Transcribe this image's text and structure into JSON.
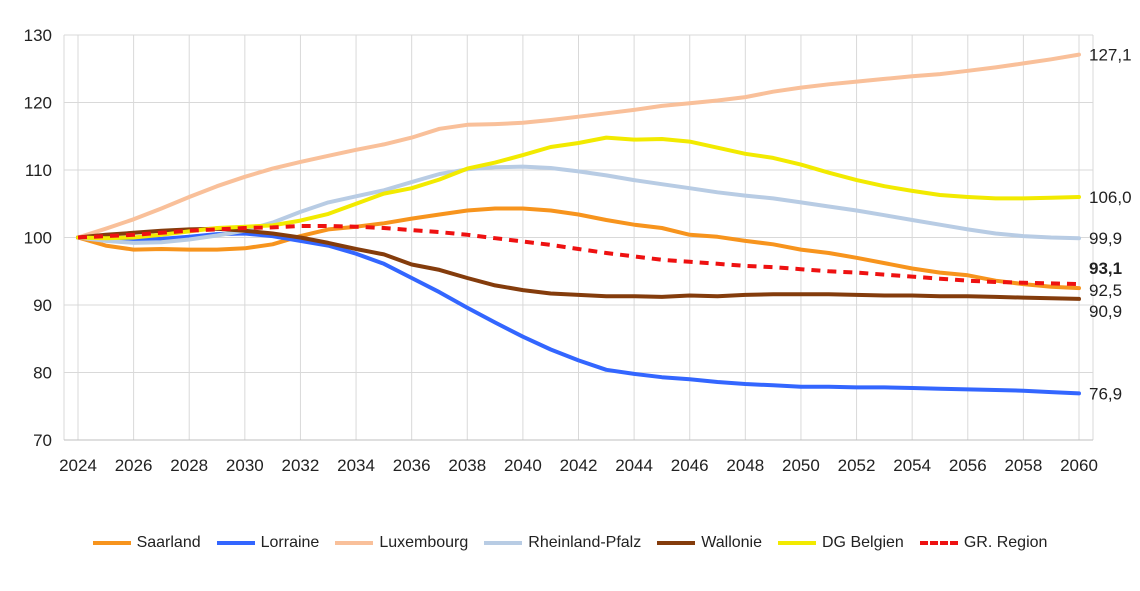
{
  "chart_data": {
    "type": "line",
    "title": "",
    "xlabel": "",
    "ylabel": "",
    "xlim": [
      2024,
      2060
    ],
    "ylim": [
      70,
      130
    ],
    "yticks": [
      70,
      80,
      90,
      100,
      110,
      120,
      130
    ],
    "xticks": [
      2024,
      2026,
      2028,
      2030,
      2032,
      2034,
      2036,
      2038,
      2040,
      2042,
      2044,
      2046,
      2048,
      2050,
      2052,
      2054,
      2056,
      2058,
      2060
    ],
    "grid": true,
    "legend_position": "bottom",
    "x": [
      2024,
      2025,
      2026,
      2027,
      2028,
      2029,
      2030,
      2031,
      2032,
      2033,
      2034,
      2035,
      2036,
      2037,
      2038,
      2039,
      2040,
      2041,
      2042,
      2043,
      2044,
      2045,
      2046,
      2047,
      2048,
      2049,
      2050,
      2051,
      2052,
      2053,
      2054,
      2055,
      2056,
      2057,
      2058,
      2059,
      2060
    ],
    "series": [
      {
        "name": "Saarland",
        "color": "#f7941d",
        "dash": false,
        "end_label": "92,5",
        "bold": false,
        "values": [
          100,
          98.8,
          98.2,
          98.3,
          98.2,
          98.2,
          98.4,
          99.0,
          100.2,
          101.2,
          101.6,
          102.1,
          102.8,
          103.4,
          104.0,
          104.3,
          104.3,
          104.0,
          103.4,
          102.6,
          101.9,
          101.4,
          100.4,
          100.1,
          99.5,
          99.0,
          98.2,
          97.7,
          97.0,
          96.2,
          95.4,
          94.8,
          94.4,
          93.6,
          93.1,
          92.7,
          92.5
        ]
      },
      {
        "name": "Lorraine",
        "color": "#3366ff",
        "dash": false,
        "end_label": "76,9",
        "bold": false,
        "values": [
          100,
          99.8,
          99.6,
          99.8,
          100.1,
          100.5,
          100.6,
          100.2,
          99.5,
          98.8,
          97.6,
          96.1,
          94.0,
          91.9,
          89.6,
          87.4,
          85.3,
          83.4,
          81.8,
          80.4,
          79.8,
          79.3,
          79.0,
          78.6,
          78.3,
          78.1,
          77.9,
          77.9,
          77.8,
          77.8,
          77.7,
          77.6,
          77.5,
          77.4,
          77.3,
          77.1,
          76.9
        ]
      },
      {
        "name": "Luxembourg",
        "color": "#f9c09a",
        "dash": false,
        "end_label": "127,1",
        "bold": false,
        "values": [
          100,
          101.3,
          102.7,
          104.3,
          106.0,
          107.6,
          109.0,
          110.2,
          111.2,
          112.1,
          113.0,
          113.8,
          114.8,
          116.1,
          116.7,
          116.8,
          117.0,
          117.4,
          117.9,
          118.4,
          118.9,
          119.5,
          119.9,
          120.3,
          120.8,
          121.6,
          122.2,
          122.7,
          123.1,
          123.5,
          123.9,
          124.2,
          124.7,
          125.2,
          125.8,
          126.4,
          127.1
        ]
      },
      {
        "name": "Rheinland-Pfalz",
        "color": "#b8cce4",
        "dash": false,
        "end_label": "99,9",
        "bold": false,
        "values": [
          100,
          99.5,
          99.2,
          99.3,
          99.7,
          100.3,
          101.0,
          102.2,
          103.8,
          105.2,
          106.1,
          107.0,
          108.2,
          109.4,
          110.1,
          110.4,
          110.5,
          110.3,
          109.8,
          109.2,
          108.5,
          107.9,
          107.3,
          106.7,
          106.2,
          105.8,
          105.2,
          104.6,
          104.0,
          103.3,
          102.6,
          101.9,
          101.2,
          100.6,
          100.2,
          100.0,
          99.9
        ]
      },
      {
        "name": "Wallonie",
        "color": "#843c0c",
        "dash": false,
        "end_label": "90,9",
        "bold": false,
        "values": [
          100,
          100.4,
          100.7,
          101.0,
          101.2,
          101.3,
          101.0,
          100.6,
          100.0,
          99.2,
          98.3,
          97.5,
          96.0,
          95.2,
          94.0,
          92.9,
          92.2,
          91.7,
          91.5,
          91.3,
          91.3,
          91.2,
          91.4,
          91.3,
          91.5,
          91.6,
          91.6,
          91.6,
          91.5,
          91.4,
          91.4,
          91.3,
          91.3,
          91.2,
          91.1,
          91.0,
          90.9
        ]
      },
      {
        "name": "DG Belgien",
        "color": "#f2ea00",
        "dash": false,
        "end_label": "106,0",
        "bold": false,
        "values": [
          100,
          99.9,
          100.0,
          100.4,
          100.9,
          101.4,
          101.6,
          101.8,
          102.5,
          103.5,
          105.0,
          106.5,
          107.3,
          108.6,
          110.2,
          111.1,
          112.2,
          113.4,
          114.0,
          114.8,
          114.5,
          114.6,
          114.2,
          113.3,
          112.4,
          111.8,
          110.8,
          109.6,
          108.5,
          107.6,
          106.9,
          106.3,
          106.0,
          105.8,
          105.8,
          105.9,
          106.0
        ]
      },
      {
        "name": "GR. Region",
        "color": "#ee1111",
        "dash": true,
        "end_label": "93,1",
        "bold": true,
        "values": [
          100,
          100.2,
          100.4,
          100.7,
          101.0,
          101.2,
          101.4,
          101.5,
          101.7,
          101.7,
          101.6,
          101.4,
          101.1,
          100.8,
          100.4,
          99.9,
          99.4,
          98.9,
          98.3,
          97.7,
          97.2,
          96.7,
          96.4,
          96.1,
          95.8,
          95.6,
          95.3,
          95.0,
          94.8,
          94.5,
          94.2,
          93.9,
          93.6,
          93.4,
          93.3,
          93.2,
          93.1
        ]
      }
    ]
  }
}
